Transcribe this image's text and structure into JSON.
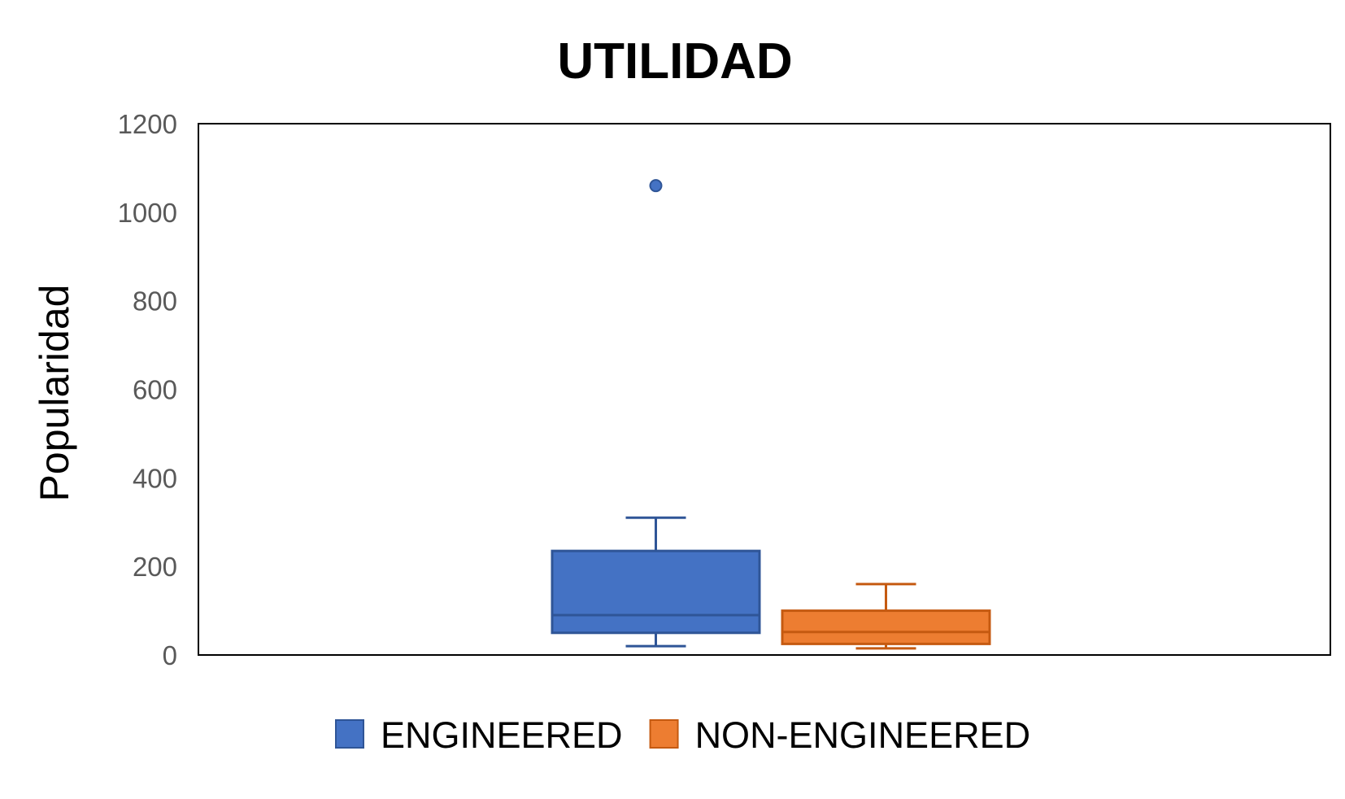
{
  "chart_data": {
    "type": "box",
    "title": "UTILIDAD",
    "xlabel": "",
    "ylabel": "Popularidad",
    "ylim": [
      0,
      1200
    ],
    "yticks": [
      0,
      200,
      400,
      600,
      800,
      1000,
      1200
    ],
    "grid": false,
    "legend_position": "bottom",
    "series": [
      {
        "name": "ENGINEERED",
        "color": "#4472C4",
        "stroke": "#2F5597",
        "min": 20,
        "q1": 50,
        "median": 90,
        "q3": 235,
        "max": 310,
        "outliers": [
          1060
        ]
      },
      {
        "name": "NON-ENGINEERED",
        "color": "#ED7D31",
        "stroke": "#C55A11",
        "min": 15,
        "q1": 25,
        "median": 52,
        "q3": 100,
        "max": 160,
        "outliers": []
      }
    ]
  }
}
